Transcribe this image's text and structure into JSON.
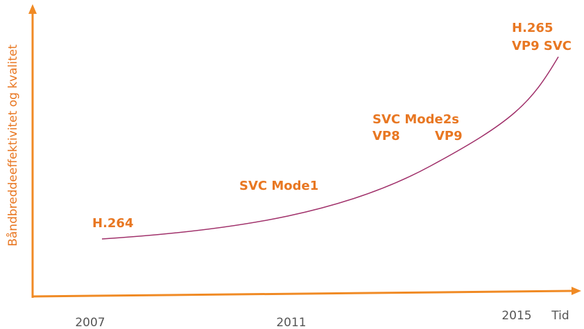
{
  "axes": {
    "y_label": "Båndbreddeeffektivitet og kvalitet",
    "x_labels": [
      "2007",
      "2011",
      "2015"
    ],
    "x_unit": "Tid"
  },
  "labels": [
    "H.264",
    "SVC Mode1",
    "SVC Mode2s",
    "VP8",
    "VP9",
    "H.265",
    "VP9 SVC"
  ]
}
